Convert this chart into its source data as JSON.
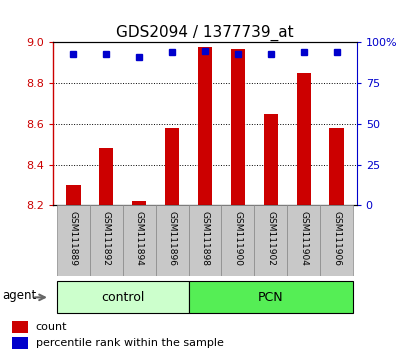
{
  "title": "GDS2094 / 1377739_at",
  "samples": [
    "GSM111889",
    "GSM111892",
    "GSM111894",
    "GSM111896",
    "GSM111898",
    "GSM111900",
    "GSM111902",
    "GSM111904",
    "GSM111906"
  ],
  "count_values": [
    8.3,
    8.48,
    8.22,
    8.58,
    8.98,
    8.97,
    8.65,
    8.85,
    8.58
  ],
  "percentile_values": [
    93,
    93,
    91,
    94,
    95,
    93,
    93,
    94,
    94
  ],
  "ylim_left": [
    8.2,
    9.0
  ],
  "ylim_right": [
    0,
    100
  ],
  "yticks_left": [
    8.2,
    8.4,
    8.6,
    8.8,
    9
  ],
  "yticks_right": [
    0,
    25,
    50,
    75,
    100
  ],
  "groups": [
    {
      "label": "control",
      "indices": [
        0,
        1,
        2,
        3
      ],
      "color": "#ccffcc"
    },
    {
      "label": "PCN",
      "indices": [
        4,
        5,
        6,
        7,
        8
      ],
      "color": "#55ee55"
    }
  ],
  "group_label": "agent",
  "bar_color": "#cc0000",
  "dot_color": "#0000cc",
  "bar_width": 0.45,
  "background_color": "#ffffff",
  "tick_area_color": "#c8c8c8",
  "title_fontsize": 11,
  "axis_color_left": "#cc0000",
  "axis_color_right": "#0000cc",
  "legend_items": [
    "count",
    "percentile rank within the sample"
  ]
}
